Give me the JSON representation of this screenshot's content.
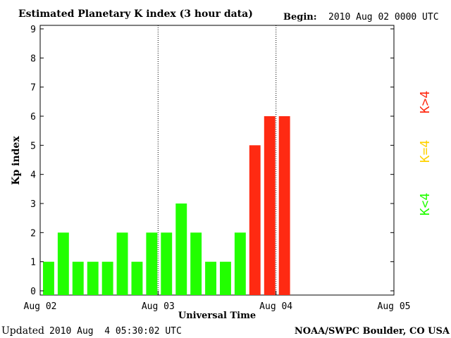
{
  "header": {
    "title": "Estimated Planetary K index (3 hour data)",
    "begin_label": "Begin:",
    "begin_value": "2010 Aug 02 0000 UTC"
  },
  "footer": {
    "updated_label": "Updated",
    "updated_value": "2010 Aug  4 05:30:02 UTC",
    "source": "NOAA/SWPC Boulder, CO USA"
  },
  "legend": {
    "items": [
      {
        "label": "K>4",
        "color": "#ff2a12"
      },
      {
        "label": "K=4",
        "color": "#ffd200"
      },
      {
        "label": "K<4",
        "color": "#22ff00"
      }
    ]
  },
  "chart_data": {
    "type": "bar",
    "title": "Estimated Planetary K index (3 hour data)",
    "xlabel": "Universal Time",
    "ylabel": "Kp index",
    "ylim": [
      0,
      9
    ],
    "yticks": [
      0,
      1,
      2,
      3,
      4,
      5,
      6,
      7,
      8,
      9
    ],
    "x_tick_labels": [
      "Aug 02",
      "Aug 03",
      "Aug 04",
      "Aug 05"
    ],
    "slots_per_day": 8,
    "total_slots": 24,
    "values": [
      1,
      2,
      1,
      1,
      1,
      2,
      1,
      2,
      2,
      3,
      2,
      1,
      1,
      2,
      5,
      6,
      6
    ],
    "colors": {
      "below_4": "#22ff00",
      "equal_4": "#ffd200",
      "above_4": "#ff2a12"
    },
    "day_dividers": [
      "Aug 03",
      "Aug 04"
    ]
  }
}
